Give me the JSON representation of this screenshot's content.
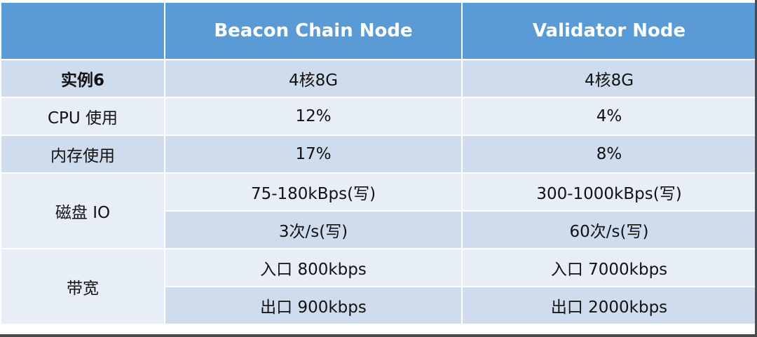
{
  "table": {
    "header": [
      "",
      "Beacon Chain Node",
      "Validator Node"
    ],
    "rows": {
      "instance": {
        "label": "实例6",
        "beacon": "4核8G",
        "validator": "4核8G"
      },
      "cpu": {
        "label": "CPU 使用",
        "beacon": "12%",
        "validator": "4%"
      },
      "memory": {
        "label": "内存使用",
        "beacon": "17%",
        "validator": "8%"
      },
      "disk_io": {
        "label": "磁盘 IO",
        "beacon": [
          "75-180kBps(写)",
          "3次/s(写)"
        ],
        "validator": [
          "300-1000kBps(写)",
          "60次/s(写)"
        ]
      },
      "bandwidth": {
        "label": "带宽",
        "beacon": [
          "入口 800kbps",
          "出口 900kbps"
        ],
        "validator": [
          "入口 7000kbps",
          "出口 2000kbps"
        ]
      }
    }
  },
  "colors": {
    "header_bg": "#5b9bd5",
    "band_dark": "#cfdcee",
    "band_light": "#e8eef7"
  }
}
